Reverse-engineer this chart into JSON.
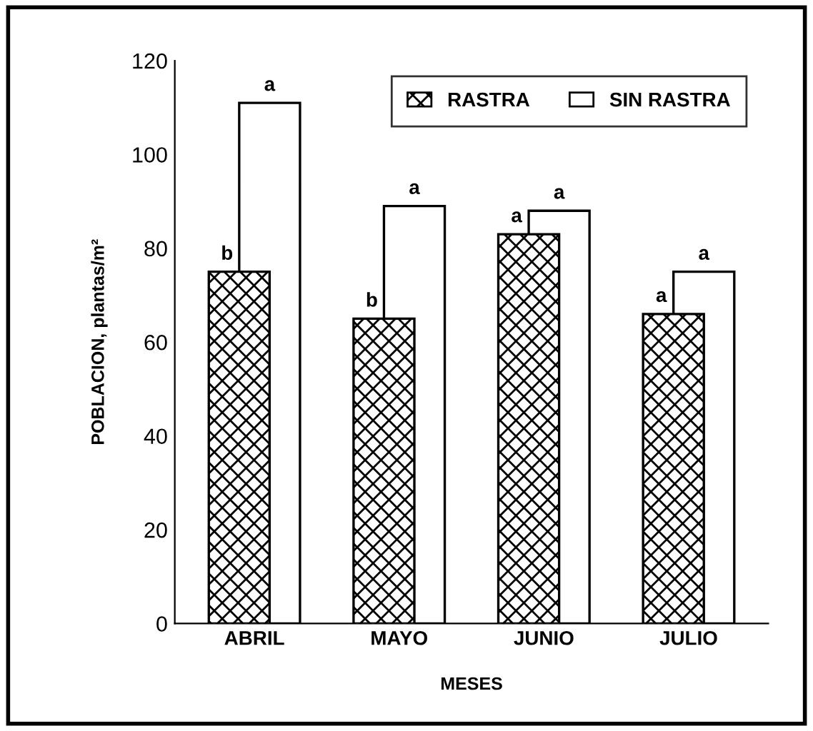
{
  "chart_data": {
    "type": "bar",
    "xlabel": "MESES",
    "ylabel": "POBLACION, plantas/m²",
    "categories": [
      "ABRIL",
      "MAYO",
      "JUNIO",
      "JULIO"
    ],
    "series": [
      {
        "name": "RASTRA",
        "color": "#000000",
        "values": [
          75,
          65,
          83,
          66
        ],
        "value_labels": [
          "b",
          "b",
          "a",
          "a"
        ]
      },
      {
        "name": "SIN RASTRA",
        "color": "#ffffff",
        "values": [
          111,
          89,
          88,
          75
        ],
        "value_labels": [
          "a",
          "a",
          "a",
          "a"
        ]
      }
    ],
    "ylim": [
      0,
      120
    ],
    "yticks": [
      0,
      20,
      40,
      60,
      80,
      100,
      120
    ],
    "grid": false,
    "legend": "top right"
  }
}
